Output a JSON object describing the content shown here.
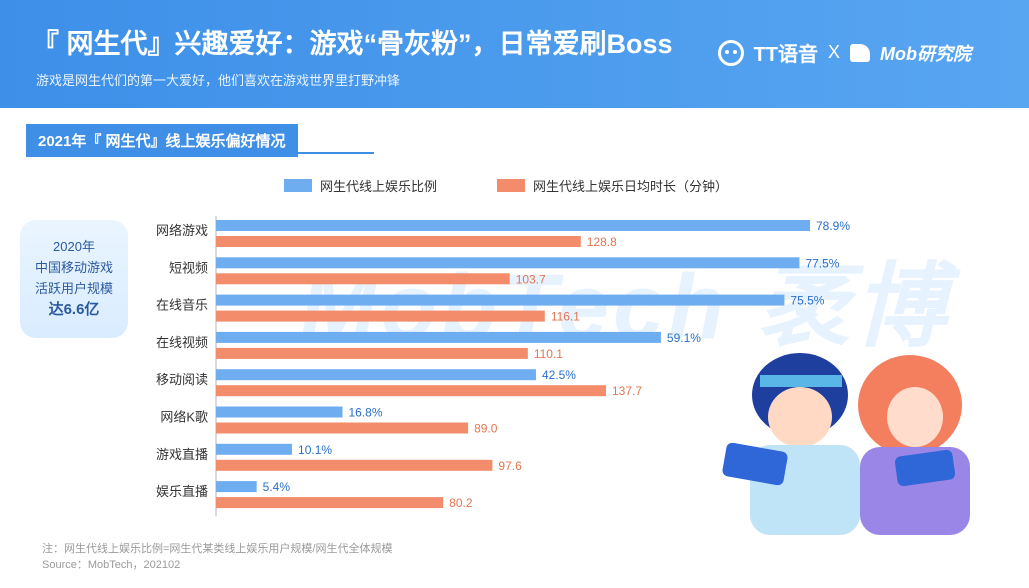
{
  "header": {
    "title": "『 网生代』兴趣爱好：游戏“骨灰粉”，日常爱刷Boss",
    "subtitle": "游戏是网生代们的第一大爱好，他们喜欢在游戏世界里打野冲锋",
    "brand_tt": "TT语音",
    "brand_x": "X",
    "brand_mob": "Mob研究院"
  },
  "section": {
    "title": "2021年『 网生代』线上娱乐偏好情况"
  },
  "side_note": {
    "line1": "2020年",
    "line2": "中国移动游戏",
    "line3": "活跃用户规模",
    "line4_prefix": "达",
    "line4_value": "6.6亿"
  },
  "watermark": "MobTech 袤博",
  "colors": {
    "accent": "#3f8fe6",
    "series_ratio": "#6eaef0",
    "series_duration": "#f28c6b"
  },
  "chart_data": {
    "type": "bar",
    "orientation": "horizontal",
    "categories": [
      "网络游戏",
      "短视频",
      "在线音乐",
      "在线视频",
      "移动阅读",
      "网络K歌",
      "游戏直播",
      "娱乐直播"
    ],
    "series": [
      {
        "name": "网生代线上娱乐比例",
        "values": [
          78.9,
          77.5,
          75.5,
          59.1,
          42.5,
          16.8,
          10.1,
          5.4
        ],
        "labels": [
          "78.9%",
          "77.5%",
          "75.5%",
          "59.1%",
          "42.5%",
          "16.8%",
          "10.1%",
          "5.4%"
        ]
      },
      {
        "name": "网生代线上娱乐日均时长（分钟）",
        "values": [
          128.8,
          103.7,
          116.1,
          110.1,
          137.7,
          89.0,
          97.6,
          80.2
        ],
        "labels": [
          "128.8",
          "103.7",
          "116.1",
          "110.1",
          "137.7",
          "89.0",
          "97.6",
          "80.2"
        ]
      }
    ],
    "legend": [
      "网生代线上娱乐比例",
      "网生代线上娱乐日均时长（分钟）"
    ]
  },
  "footnote": {
    "note": "注：网生代线上娱乐比例=网生代某类线上娱乐用户规模/网生代全体规模",
    "source": "Source：MobTech，202102"
  }
}
